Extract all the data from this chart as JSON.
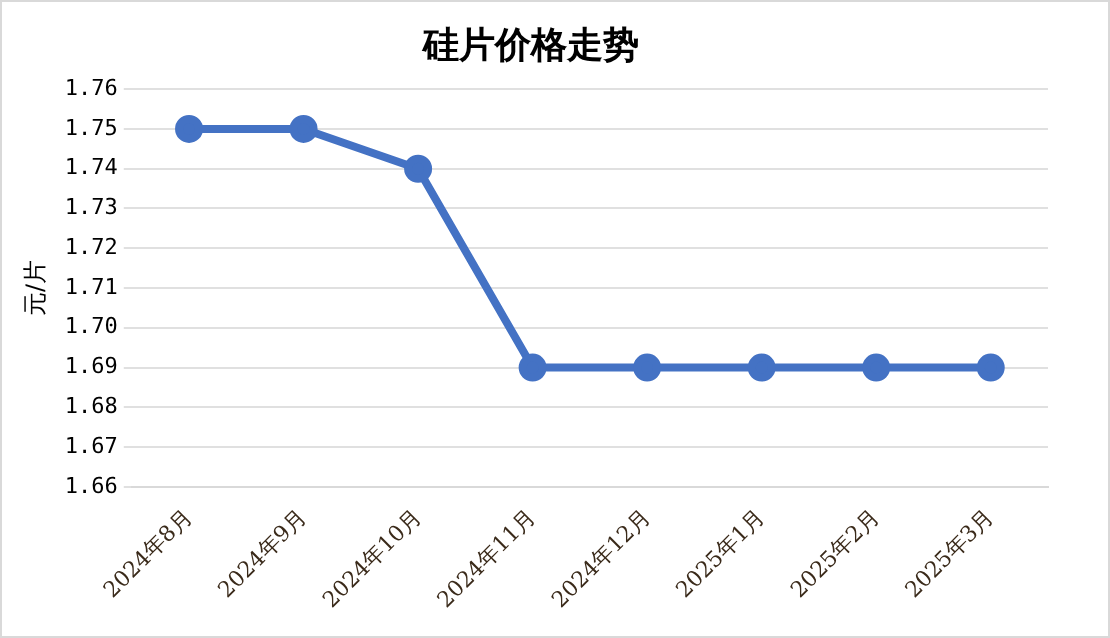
{
  "chart_data": {
    "type": "line",
    "title": "硅片价格走势",
    "ylabel": "元/片",
    "categories": [
      "2024年8月",
      "2024年9月",
      "2024年10月",
      "2024年11月",
      "2024年12月",
      "2025年1月",
      "2025年2月",
      "2025年3月"
    ],
    "series": [
      {
        "color": "#4472c4",
        "values": [
          1.75,
          1.75,
          1.74,
          1.69,
          1.69,
          1.69,
          1.69,
          1.69
        ]
      }
    ],
    "ylim": [
      1.66,
      1.76
    ],
    "yticks": [
      1.66,
      1.67,
      1.68,
      1.69,
      {
        "value": 1.7,
        "label": "1.70"
      },
      1.71,
      1.72,
      1.73,
      1.74,
      1.75,
      1.76
    ],
    "grid": "y",
    "legend": false,
    "marker": "circle",
    "line_style": "solid"
  }
}
